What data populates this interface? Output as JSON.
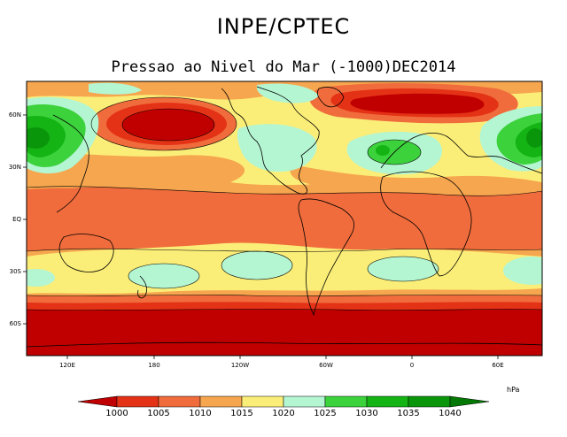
{
  "title": "INPE/CPTEC",
  "subtitle": "Pressao ao Nivel do Mar (-1000)DEC2014",
  "map": {
    "lat_labels": [
      "60N",
      "30N",
      "EQ",
      "30S",
      "60S"
    ],
    "lon_labels": [
      "120E",
      "180",
      "120W",
      "60W",
      "0",
      "60E"
    ]
  },
  "colorbar": {
    "unit": "hPa",
    "levels": [
      "1000",
      "1005",
      "1010",
      "1015",
      "1020",
      "1025",
      "1030",
      "1035",
      "1040"
    ],
    "colors": [
      "#c00000",
      "#e43216",
      "#f06c3c",
      "#f6a64e",
      "#fbee78",
      "#b4f5d2",
      "#3cd23c",
      "#14b414",
      "#0a960a",
      "#047804"
    ]
  }
}
